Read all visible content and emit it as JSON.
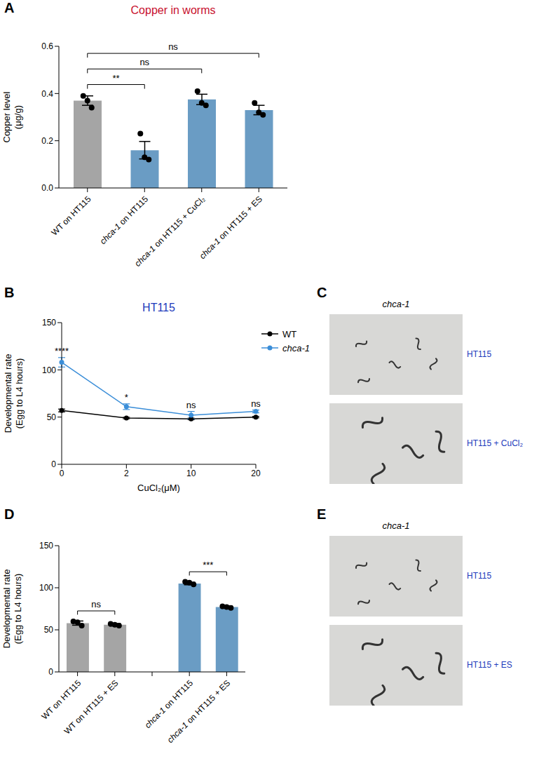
{
  "chart_data": [
    {
      "panel": "A",
      "type": "bar",
      "title": "Copper in worms",
      "y_label": "Copper level (μg/g)",
      "categories": [
        "WT on HT115",
        "chca-1 on HT115",
        "chca-1 on HT115 + CuCl₂",
        "chca-1 on HT115 + ES"
      ],
      "values": [
        0.37,
        0.16,
        0.375,
        0.33
      ],
      "errors": [
        0.02,
        0.037,
        0.022,
        0.02
      ],
      "points": [
        [
          0.39,
          0.37,
          0.34
        ],
        [
          0.23,
          0.13,
          0.12
        ],
        [
          0.41,
          0.36,
          0.35
        ],
        [
          0.36,
          0.32,
          0.31
        ]
      ],
      "colors": [
        "#a5a5a5",
        "#6a9cc4",
        "#6a9cc4",
        "#6a9cc4"
      ],
      "ylim": [
        0,
        0.6
      ],
      "yticks": [
        {
          "value": 0,
          "label": "0.0"
        },
        0.2,
        0.4,
        0.6
      ],
      "annotations": [
        {
          "from": 0,
          "to": 1,
          "text": "**"
        },
        {
          "from": 0,
          "to": 2,
          "text": "ns"
        },
        {
          "from": 0,
          "to": 3,
          "text": "ns"
        }
      ]
    },
    {
      "panel": "B",
      "type": "line",
      "title": "HT115",
      "x_label": "CuCl₂(μM)",
      "y_label": "Developmental rate (Egg to L4 hours)",
      "categories": [
        "0",
        "2",
        "10",
        "20"
      ],
      "series": [
        {
          "name": "WT",
          "color": "#000000",
          "marker": "circle",
          "values": [
            57,
            49,
            48,
            50
          ],
          "errors": [
            1.5,
            0.8,
            0.8,
            0.8
          ]
        },
        {
          "name": "chca-1",
          "color": "#3b8ed8",
          "marker": "circle",
          "values": [
            108,
            61,
            52,
            56
          ],
          "errors": [
            5,
            3,
            4,
            1.5
          ]
        }
      ],
      "ylim": [
        0,
        150
      ],
      "yticks": [
        0,
        50,
        100,
        150
      ],
      "legend": "right",
      "annotations": [
        {
          "at": 0,
          "text": "****"
        },
        {
          "at": 1,
          "text": "*"
        },
        {
          "at": 2,
          "text": "ns"
        },
        {
          "at": 3,
          "text": "ns"
        }
      ]
    },
    {
      "panel": "D",
      "type": "bar",
      "y_label": "Developmental rate (Egg to L4 hours)",
      "categories": [
        "WT on HT115",
        "WT on HT115 + ES",
        null,
        "chca-1 on HT115",
        "chca-1 on HT115 + ES"
      ],
      "values": [
        58,
        56,
        null,
        105,
        77
      ],
      "errors": [
        2.5,
        1.5,
        null,
        1.5,
        1.5
      ],
      "points": [
        [
          60,
          59,
          55
        ],
        [
          57,
          56,
          55
        ],
        null,
        [
          107,
          106,
          104
        ],
        [
          78,
          77,
          76
        ]
      ],
      "colors": [
        "#a5a5a5",
        "#a5a5a5",
        null,
        "#6a9cc4",
        "#6a9cc4"
      ],
      "ylim": [
        0,
        150
      ],
      "yticks": [
        0,
        50,
        100,
        150
      ],
      "annotations": [
        {
          "from": 0,
          "to": 1,
          "text": "ns"
        },
        {
          "from": 3,
          "to": 4,
          "text": "***"
        }
      ]
    }
  ],
  "images": [
    {
      "panel": "C",
      "title": "chca-1",
      "labels": [
        "HT115",
        "HT115 + CuCl₂"
      ]
    },
    {
      "panel": "E",
      "title": "chca-1",
      "labels": [
        "HT115",
        "HT115 + ES"
      ]
    }
  ]
}
